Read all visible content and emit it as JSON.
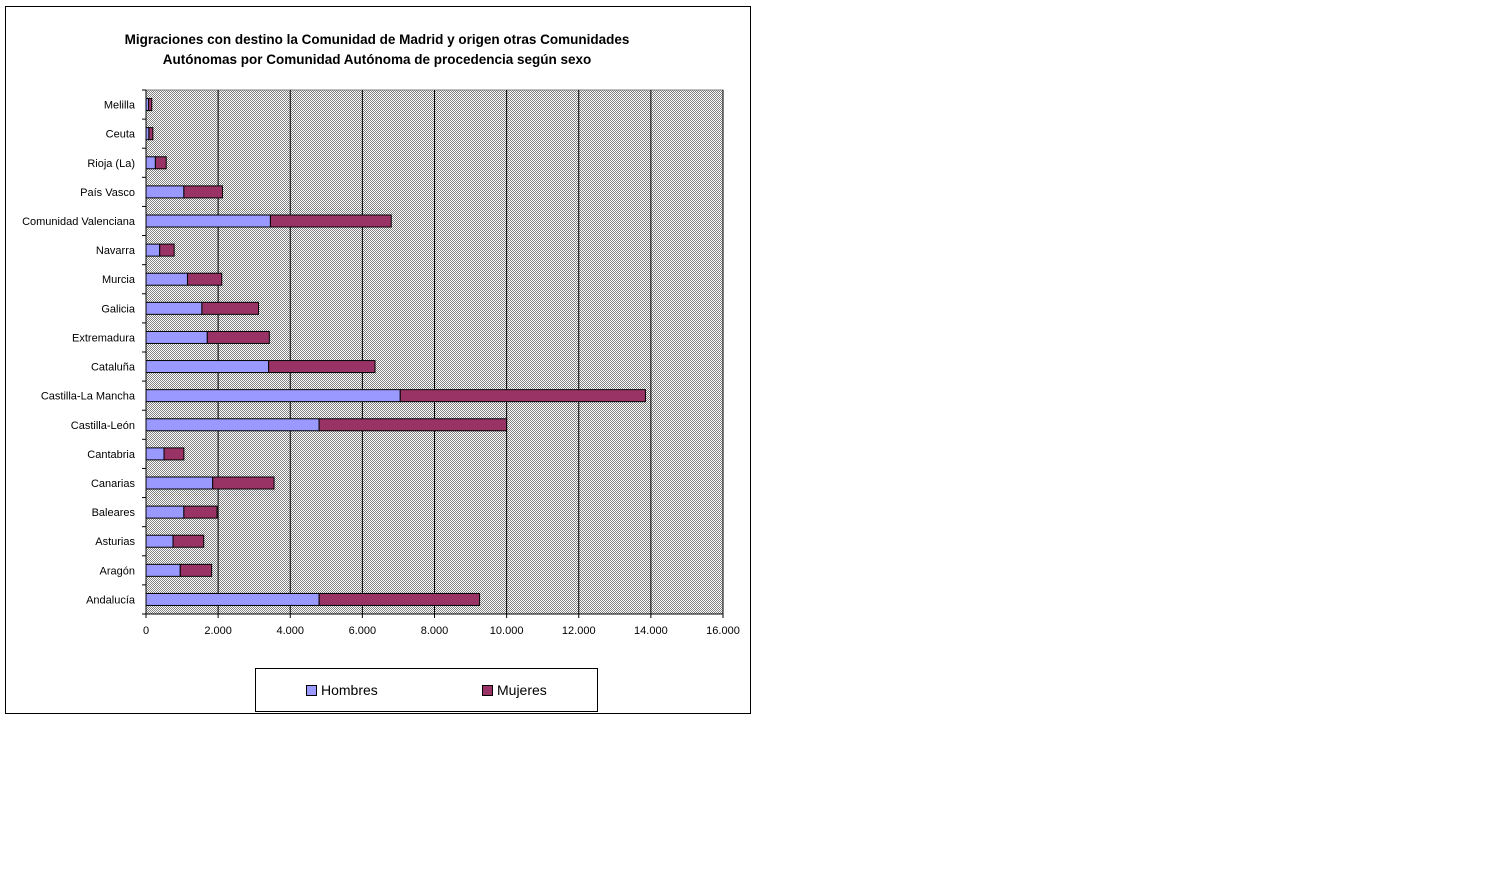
{
  "chart_data": {
    "type": "bar",
    "orientation": "horizontal",
    "stacked": true,
    "title_lines": [
      "Migraciones con destino la Comunidad de Madrid y origen otras Comunidades",
      "Autónomas por Comunidad Autónoma de procedencia según sexo"
    ],
    "categories": [
      "Andalucía",
      "Aragón",
      "Asturias",
      "Baleares",
      "Canarias",
      "Cantabria",
      "Castilla-León",
      "Castilla-La Mancha",
      "Cataluña",
      "Extremadura",
      "Galicia",
      "Murcia",
      "Navarra",
      "Comunidad Valenciana",
      "País Vasco",
      "Rioja (La)",
      "Ceuta",
      "Melilla"
    ],
    "series": [
      {
        "name": "Hombres",
        "color": "#9999ff",
        "values": [
          4800,
          950,
          750,
          1050,
          1850,
          500,
          4800,
          7050,
          3400,
          1700,
          1550,
          1150,
          380,
          3450,
          1050,
          260,
          80,
          70
        ]
      },
      {
        "name": "Mujeres",
        "color": "#993366",
        "values": [
          4450,
          870,
          850,
          920,
          1700,
          550,
          5200,
          6800,
          2950,
          1720,
          1570,
          950,
          400,
          3350,
          1070,
          300,
          110,
          90
        ]
      }
    ],
    "xlim": [
      0,
      16000
    ],
    "xticks": [
      "0",
      "2.000",
      "4.000",
      "6.000",
      "8.000",
      "10.000",
      "12.000",
      "14.000",
      "16.000"
    ],
    "grid": true,
    "plot_background": "#c0c0c0",
    "legend_position": "bottom"
  },
  "legend": {
    "hombres": "Hombres",
    "mujeres": "Mujeres"
  }
}
